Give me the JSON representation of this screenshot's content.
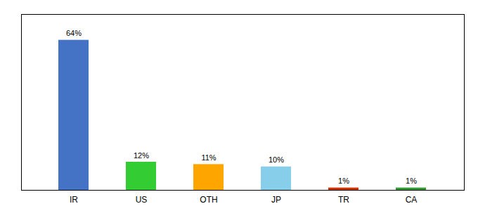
{
  "chart_data": {
    "type": "bar",
    "categories": [
      "IR",
      "US",
      "OTH",
      "JP",
      "TR",
      "CA"
    ],
    "values": [
      64,
      12,
      11,
      10,
      1,
      1
    ],
    "value_labels": [
      "64%",
      "12%",
      "11%",
      "10%",
      "1%",
      "1%"
    ],
    "colors": [
      "#4472C4",
      "#33CC33",
      "#FFA500",
      "#87CEEB",
      "#CC3300",
      "#339933"
    ],
    "ylim": [
      0,
      75
    ],
    "tick_labels": "x",
    "data_labels": true
  }
}
